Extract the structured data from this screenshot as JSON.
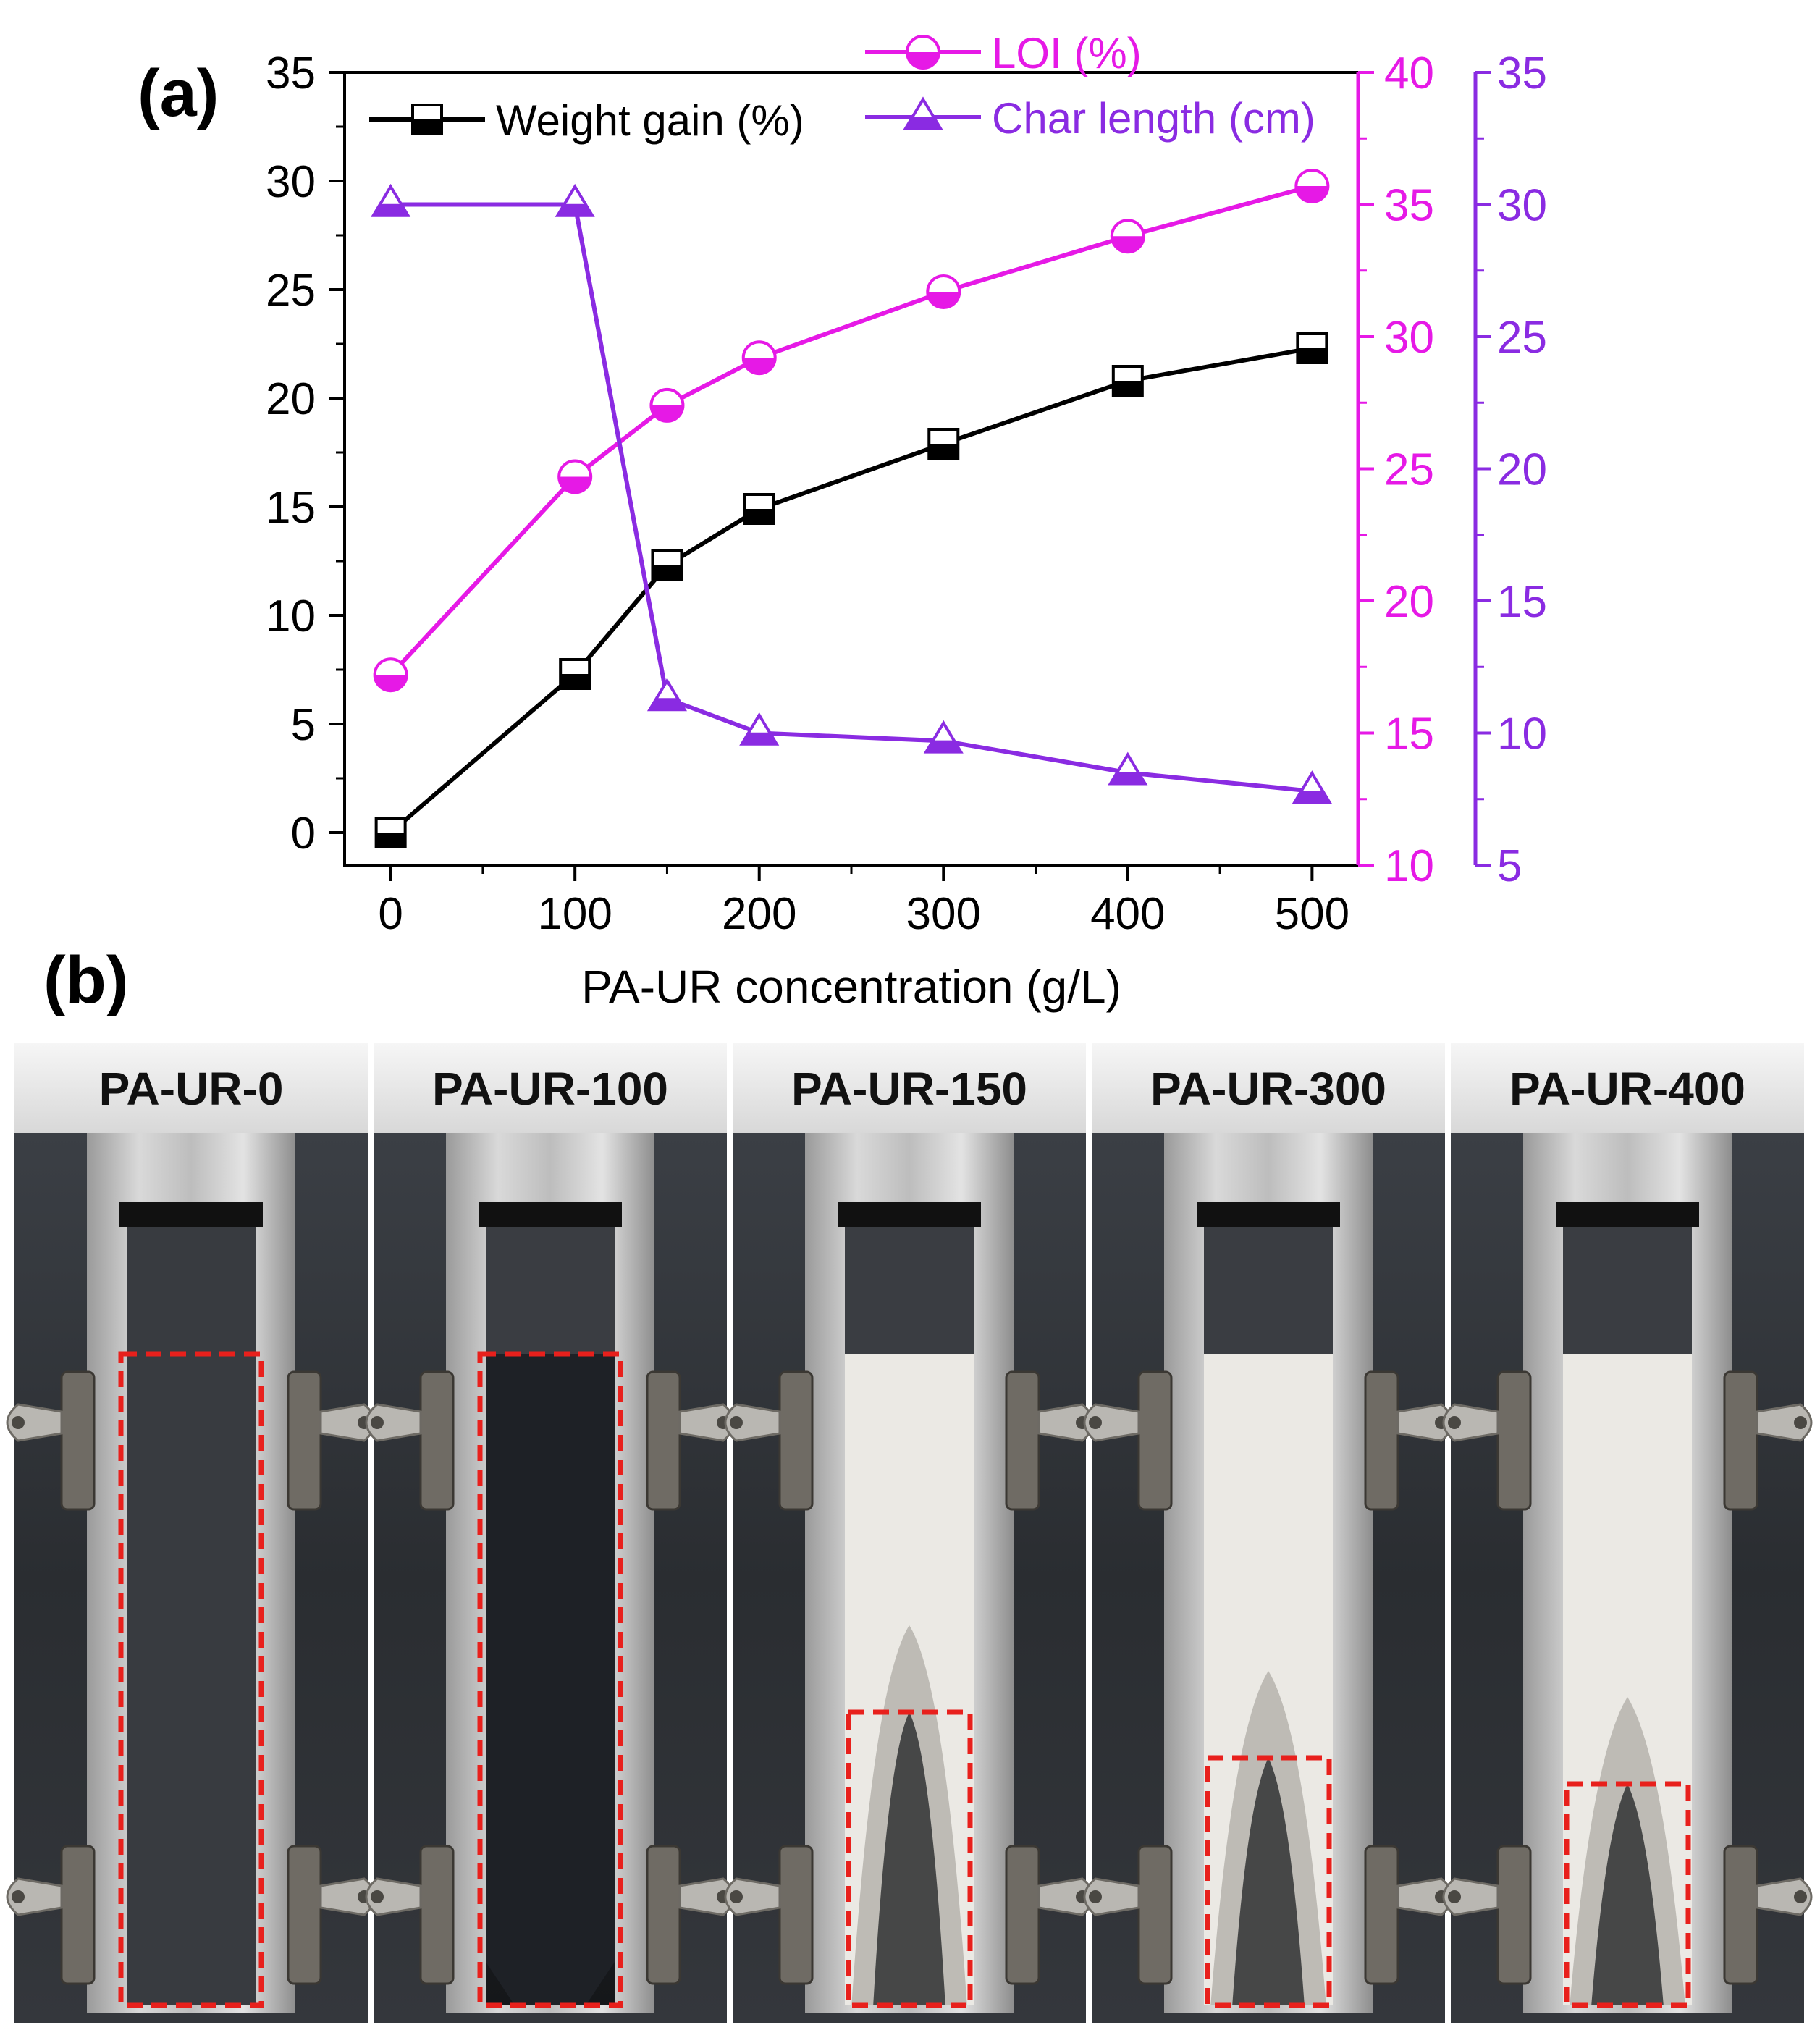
{
  "panels": {
    "a_label": "(a)",
    "b_label": "(b)"
  },
  "chart_data": {
    "type": "line",
    "xlabel": "PA-UR concentration (g/L)",
    "x": [
      0,
      100,
      150,
      200,
      300,
      400,
      500
    ],
    "xticks": [
      0,
      100,
      200,
      300,
      400,
      500
    ],
    "xlim": [
      -25,
      525
    ],
    "y_axes": {
      "left": {
        "ylim": [
          -1.5,
          35
        ],
        "ticks": [
          0,
          5,
          10,
          15,
          20,
          25,
          30,
          35
        ],
        "color": "#000000"
      },
      "right1": {
        "ylim": [
          10,
          40
        ],
        "ticks": [
          10,
          15,
          20,
          25,
          30,
          35,
          40
        ],
        "color": "#e619e6"
      },
      "right2": {
        "ylim": [
          5,
          35
        ],
        "ticks": [
          5,
          10,
          15,
          20,
          25,
          30,
          35
        ],
        "color": "#8a2be2"
      }
    },
    "series": [
      {
        "name": "Weight gain (%)",
        "axis": "left",
        "marker": "square",
        "color": "#000000",
        "values": [
          0,
          7.3,
          12.3,
          14.9,
          17.9,
          20.8,
          22.3
        ]
      },
      {
        "name": "LOI (%)",
        "axis": "right1",
        "marker": "circle",
        "color": "#e619e6",
        "values": [
          17.2,
          24.7,
          27.4,
          29.2,
          31.7,
          33.8,
          35.7
        ]
      },
      {
        "name": "Char length (cm)",
        "axis": "right2",
        "marker": "triangle",
        "color": "#8a2be2",
        "values": [
          30,
          30,
          11.3,
          10,
          9.7,
          8.5,
          7.8
        ]
      }
    ],
    "legend_placement": "top"
  },
  "photos": {
    "samples": [
      {
        "label": "PA-UR-0",
        "char": "full-dark",
        "box_top": 0.2
      },
      {
        "label": "PA-UR-100",
        "char": "full-dark",
        "box_top": 0.2
      },
      {
        "label": "PA-UR-150",
        "char": "partial",
        "box_top": 0.55
      },
      {
        "label": "PA-UR-300",
        "char": "partial",
        "box_top": 0.62
      },
      {
        "label": "PA-UR-400",
        "char": "partial",
        "box_top": 0.66
      }
    ]
  }
}
